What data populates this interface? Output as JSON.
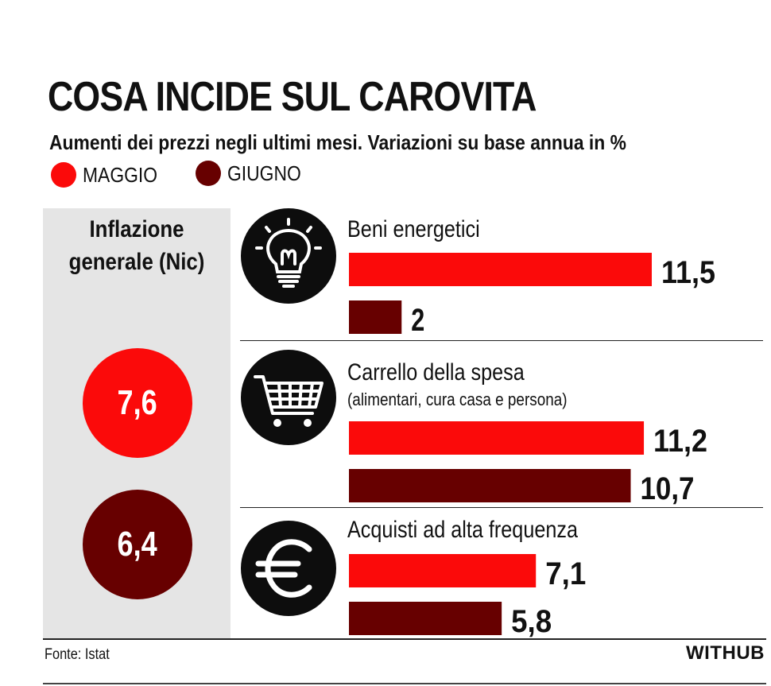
{
  "colors": {
    "maggio": "#fb0a0a",
    "giugno": "#670000",
    "text": "#111111",
    "panel": "#e5e5e5",
    "icon_bg": "#0d0d0d"
  },
  "header": {
    "title": "COSA INCIDE SUL CAROVITA",
    "subtitle": "Aumenti dei prezzi negli ultimi mesi. Variazioni su base annua in %"
  },
  "legend": {
    "items": [
      {
        "label": "MAGGIO"
      },
      {
        "label": "GIUGNO"
      }
    ]
  },
  "inflazione": {
    "title": "Inflazione generale (Nic)",
    "maggio": "7,6",
    "giugno": "6,4"
  },
  "footer": {
    "source": "Fonte: Istat",
    "brand": "WITHUB"
  },
  "chart_data": {
    "type": "bar",
    "orientation": "horizontal",
    "categories": [
      "Beni energetici",
      "Carrello della spesa",
      "Acquisti ad alta frequenza"
    ],
    "category_notes": [
      "",
      "(alimentari, cura casa e persona)",
      ""
    ],
    "icons": [
      "lightbulb-icon",
      "shopping-cart-icon",
      "euro-icon"
    ],
    "series": [
      {
        "name": "MAGGIO",
        "values": [
          11.5,
          11.2,
          7.1
        ],
        "labels": [
          "11,5",
          "11,2",
          "7,1"
        ]
      },
      {
        "name": "GIUGNO",
        "values": [
          2,
          10.7,
          5.8
        ],
        "labels": [
          "2",
          "10,7",
          "5,8"
        ]
      }
    ],
    "xlim": [
      0,
      11.5
    ],
    "title": "COSA INCIDE SUL CAROVITA",
    "legend": "top-left",
    "grid": false
  }
}
